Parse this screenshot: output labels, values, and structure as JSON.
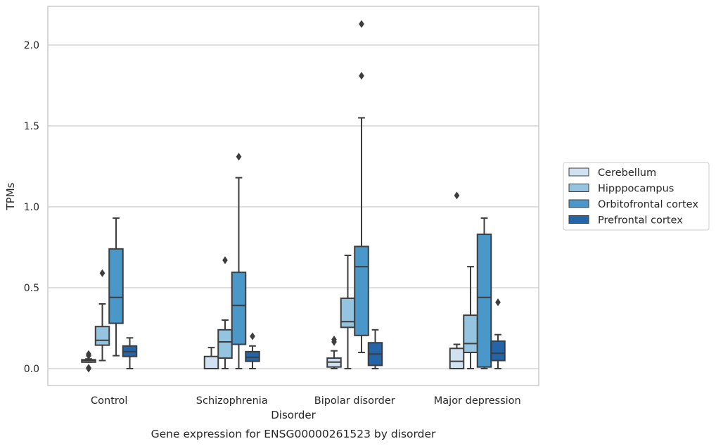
{
  "chart_data": {
    "type": "box",
    "xlabel": "Disorder",
    "ylabel": "TPMs",
    "caption": "Gene expression for ENSG00000261523 by disorder",
    "categories": [
      "Control",
      "Schizophrenia",
      "Bipolar disorder",
      "Major depression"
    ],
    "ylim": [
      -0.1,
      2.25
    ],
    "yticks": [
      0.0,
      0.5,
      1.0,
      1.5,
      2.0
    ],
    "ytick_labels": [
      "0.0",
      "0.5",
      "1.0",
      "1.5",
      "2.0"
    ],
    "grid": "horizontal",
    "legend_placement": "outside-right",
    "series": [
      {
        "name": "Cerebellum",
        "color": "#d0e1f2",
        "boxes": [
          {
            "whislo": 0.04,
            "q1": 0.04,
            "med": 0.05,
            "q3": 0.055,
            "whishi": 0.06,
            "fliers": [
              0.08,
              0.09,
              0.0,
              0.005
            ]
          },
          {
            "whislo": 0.0,
            "q1": 0.0,
            "med": 0.0,
            "q3": 0.075,
            "whishi": 0.13,
            "fliers": []
          },
          {
            "whislo": 0.0,
            "q1": 0.01,
            "med": 0.04,
            "q3": 0.065,
            "whishi": 0.11,
            "fliers": [
              0.165,
              0.18
            ]
          },
          {
            "whislo": 0.0,
            "q1": 0.0,
            "med": 0.045,
            "q3": 0.125,
            "whishi": 0.15,
            "fliers": [
              1.07
            ]
          }
        ]
      },
      {
        "name": "Hipppocampus",
        "color": "#94c4df",
        "boxes": [
          {
            "whislo": 0.05,
            "q1": 0.145,
            "med": 0.175,
            "q3": 0.26,
            "whishi": 0.4,
            "fliers": [
              0.59
            ]
          },
          {
            "whislo": 0.0,
            "q1": 0.065,
            "med": 0.165,
            "q3": 0.24,
            "whishi": 0.3,
            "fliers": [
              0.67
            ]
          },
          {
            "whislo": 0.0,
            "q1": 0.255,
            "med": 0.29,
            "q3": 0.435,
            "whishi": 0.7,
            "fliers": []
          },
          {
            "whislo": 0.0,
            "q1": 0.1,
            "med": 0.155,
            "q3": 0.33,
            "whishi": 0.63,
            "fliers": []
          }
        ]
      },
      {
        "name": "Orbitofrontal cortex",
        "color": "#4a98c9",
        "boxes": [
          {
            "whislo": 0.08,
            "q1": 0.28,
            "med": 0.44,
            "q3": 0.74,
            "whishi": 0.93,
            "fliers": []
          },
          {
            "whislo": 0.0,
            "q1": 0.15,
            "med": 0.39,
            "q3": 0.595,
            "whishi": 1.18,
            "fliers": [
              1.31
            ]
          },
          {
            "whislo": 0.1,
            "q1": 0.205,
            "med": 0.63,
            "q3": 0.755,
            "whishi": 1.55,
            "fliers": [
              1.81,
              2.13
            ]
          },
          {
            "whislo": 0.0,
            "q1": 0.01,
            "med": 0.44,
            "q3": 0.83,
            "whishi": 0.93,
            "fliers": []
          }
        ]
      },
      {
        "name": "Prefrontal cortex",
        "color": "#2464a8",
        "boxes": [
          {
            "whislo": 0.0,
            "q1": 0.075,
            "med": 0.105,
            "q3": 0.14,
            "whishi": 0.19,
            "fliers": []
          },
          {
            "whislo": 0.0,
            "q1": 0.045,
            "med": 0.07,
            "q3": 0.105,
            "whishi": 0.14,
            "fliers": [
              0.2
            ]
          },
          {
            "whislo": 0.0,
            "q1": 0.02,
            "med": 0.09,
            "q3": 0.16,
            "whishi": 0.24,
            "fliers": []
          },
          {
            "whislo": 0.0,
            "q1": 0.05,
            "med": 0.095,
            "q3": 0.17,
            "whishi": 0.21,
            "fliers": [
              0.41
            ]
          }
        ]
      }
    ]
  }
}
